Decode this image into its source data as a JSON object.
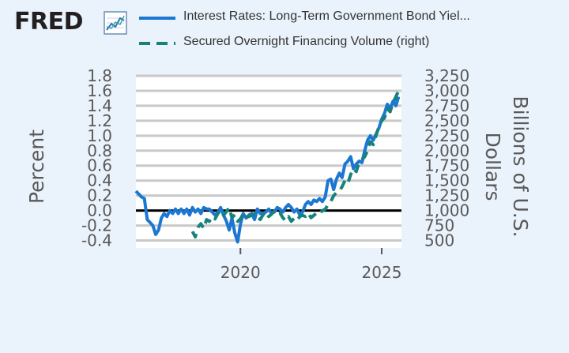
{
  "header": {
    "logo_text": "FRED",
    "logo_icon": "line-chart-icon"
  },
  "legend": [
    {
      "label": "Interest Rates: Long-Term Government Bond Yiel...",
      "color": "#1b77d2",
      "style": "solid"
    },
    {
      "label": "Secured Overnight Financing Volume (right)",
      "color": "#17827a",
      "style": "dashed"
    }
  ],
  "chart_data": {
    "type": "line",
    "ylabel": "Percent",
    "y2label": "Billions of U.S. Dollars",
    "xlim": [
      2016.3,
      2025.7
    ],
    "ylim": [
      -0.5,
      1.8
    ],
    "y2lim": [
      375,
      3250
    ],
    "x_ticks": [
      2020,
      2025
    ],
    "x_tick_labels": [
      "2020",
      "2025"
    ],
    "y_ticks": [
      -0.4,
      -0.2,
      0.0,
      0.2,
      0.4,
      0.6,
      0.8,
      1.0,
      1.2,
      1.4,
      1.6,
      1.8
    ],
    "y_tick_labels": [
      "-0.4",
      "-0.2",
      "0.0",
      "0.2",
      "0.4",
      "0.6",
      "0.8",
      "1.0",
      "1.2",
      "1.4",
      "1.6",
      "1.8"
    ],
    "y2_ticks": [
      500,
      750,
      1000,
      1250,
      1500,
      1750,
      2000,
      2250,
      2500,
      2750,
      3000,
      3250
    ],
    "y2_tick_labels": [
      "500",
      "750",
      "1,000",
      "1,250",
      "1,500",
      "1,750",
      "2,000",
      "2,250",
      "2,500",
      "2,750",
      "3,000",
      "3,250"
    ],
    "zero_line": 0,
    "grid": true,
    "series": [
      {
        "name": "Interest Rates: Long-Term Government Bond Yiel...",
        "axis": "left",
        "color": "#1b77d2",
        "style": "solid",
        "x": [
          2016.3,
          2016.4,
          2016.5,
          2016.6,
          2016.7,
          2016.8,
          2016.9,
          2017.0,
          2017.1,
          2017.2,
          2017.3,
          2017.4,
          2017.5,
          2017.6,
          2017.7,
          2017.8,
          2017.9,
          2018.0,
          2018.1,
          2018.2,
          2018.3,
          2018.4,
          2018.5,
          2018.6,
          2018.7,
          2018.8,
          2018.9,
          2019.0,
          2019.1,
          2019.2,
          2019.3,
          2019.4,
          2019.5,
          2019.6,
          2019.7,
          2019.8,
          2019.9,
          2020.0,
          2020.1,
          2020.2,
          2020.3,
          2020.4,
          2020.5,
          2020.6,
          2020.7,
          2020.8,
          2020.9,
          2021.0,
          2021.1,
          2021.2,
          2021.3,
          2021.4,
          2021.5,
          2021.6,
          2021.7,
          2021.8,
          2021.9,
          2022.0,
          2022.1,
          2022.2,
          2022.3,
          2022.4,
          2022.5,
          2022.6,
          2022.7,
          2022.8,
          2022.9,
          2023.0,
          2023.1,
          2023.2,
          2023.3,
          2023.4,
          2023.5,
          2023.6,
          2023.7,
          2023.8,
          2023.9,
          2024.0,
          2024.1,
          2024.2,
          2024.3,
          2024.4,
          2024.5,
          2024.6,
          2024.7,
          2024.8,
          2024.9,
          2025.0,
          2025.1,
          2025.2,
          2025.3,
          2025.4,
          2025.5,
          2025.6
        ],
        "y": [
          0.26,
          0.22,
          0.18,
          0.16,
          -0.12,
          -0.16,
          -0.2,
          -0.32,
          -0.26,
          -0.1,
          -0.04,
          -0.08,
          0.0,
          -0.04,
          0.02,
          -0.04,
          0.02,
          -0.04,
          0.02,
          -0.06,
          0.04,
          -0.02,
          0.02,
          -0.04,
          0.04,
          0.02,
          0.02,
          -0.02,
          -0.06,
          -0.02,
          0.04,
          -0.06,
          -0.14,
          -0.26,
          -0.1,
          -0.3,
          -0.42,
          -0.18,
          -0.04,
          -0.1,
          -0.06,
          -0.04,
          -0.12,
          0.02,
          -0.04,
          -0.04,
          -0.02,
          0.02,
          -0.04,
          -0.02,
          0.04,
          0.02,
          -0.02,
          0.04,
          0.08,
          0.04,
          -0.02,
          0.02,
          -0.06,
          -0.02,
          0.08,
          0.12,
          0.08,
          0.14,
          0.12,
          0.16,
          0.12,
          0.18,
          0.4,
          0.42,
          0.28,
          0.42,
          0.5,
          0.44,
          0.62,
          0.66,
          0.72,
          0.56,
          0.62,
          0.66,
          0.64,
          0.8,
          0.94,
          1.0,
          0.94,
          1.02,
          1.1,
          1.22,
          1.3,
          1.42,
          1.36,
          1.46,
          1.4,
          1.52
        ]
      },
      {
        "name": "Secured Overnight Financing Volume (right)",
        "axis": "right",
        "color": "#17827a",
        "style": "dashed",
        "x": [
          2018.3,
          2018.4,
          2018.5,
          2018.6,
          2018.7,
          2018.8,
          2018.9,
          2019.0,
          2019.1,
          2019.2,
          2019.3,
          2019.4,
          2019.5,
          2019.6,
          2019.7,
          2019.8,
          2019.9,
          2020.0,
          2020.1,
          2020.2,
          2020.3,
          2020.4,
          2020.5,
          2020.6,
          2020.7,
          2020.8,
          2020.9,
          2021.0,
          2021.1,
          2021.2,
          2021.3,
          2021.4,
          2021.5,
          2021.6,
          2021.7,
          2021.8,
          2021.9,
          2022.0,
          2022.1,
          2022.2,
          2022.3,
          2022.4,
          2022.5,
          2022.6,
          2022.7,
          2022.8,
          2022.9,
          2023.0,
          2023.1,
          2023.2,
          2023.3,
          2023.4,
          2023.5,
          2023.6,
          2023.7,
          2023.8,
          2023.9,
          2024.0,
          2024.1,
          2024.2,
          2024.3,
          2024.4,
          2024.5,
          2024.6,
          2024.7,
          2024.8,
          2024.9,
          2025.0,
          2025.1,
          2025.2,
          2025.3,
          2025.4,
          2025.5,
          2025.6,
          2025.7
        ],
        "y": [
          650,
          560,
          720,
          780,
          700,
          850,
          820,
          900,
          860,
          950,
          1000,
          920,
          980,
          1050,
          880,
          930,
          820,
          860,
          950,
          880,
          900,
          920,
          950,
          880,
          850,
          930,
          980,
          900,
          940,
          1000,
          950,
          960,
          880,
          830,
          900,
          820,
          870,
          830,
          900,
          920,
          900,
          960,
          880,
          920,
          960,
          940,
          1000,
          1020,
          1100,
          1150,
          1250,
          1300,
          1320,
          1400,
          1500,
          1450,
          1600,
          1700,
          1650,
          1800,
          1850,
          1900,
          2000,
          2150,
          2100,
          2250,
          2400,
          2500,
          2550,
          2700,
          2650,
          2800,
          2900,
          3000,
          3000
        ]
      }
    ]
  }
}
